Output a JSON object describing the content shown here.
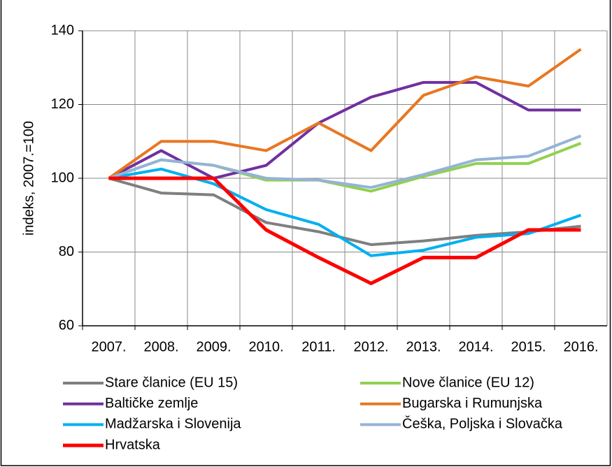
{
  "chart_data": {
    "type": "line",
    "y_label": "indeks, 2007.=100",
    "categories": [
      "2007.",
      "2008.",
      "2009.",
      "2010.",
      "2011.",
      "2012.",
      "2013.",
      "2014.",
      "2015.",
      "2016."
    ],
    "series": [
      {
        "name": "Stare članice (EU 15)",
        "color": "#7f7f7f",
        "values": [
          100,
          96,
          95.5,
          88,
          85.5,
          82,
          83,
          84.5,
          85.5,
          87
        ]
      },
      {
        "name": "Nove članice (EU 12)",
        "color": "#92d050",
        "values": [
          100,
          105,
          103.5,
          99.5,
          99.5,
          96.5,
          100.5,
          104,
          104,
          109.5
        ]
      },
      {
        "name": "Baltičke zemlje",
        "color": "#7030a0",
        "values": [
          100,
          107.5,
          100,
          103.5,
          115,
          122,
          126,
          126,
          118.5,
          118.5
        ]
      },
      {
        "name": "Bugarska i Rumunjska",
        "color": "#e87722",
        "values": [
          100,
          110,
          110,
          107.5,
          115,
          107.5,
          122.5,
          127.5,
          125,
          135
        ]
      },
      {
        "name": "Madžarska i Slovenija",
        "color": "#00b0f0",
        "values": [
          100,
          102.5,
          98.5,
          91.5,
          87.5,
          79,
          80.5,
          84,
          85,
          90
        ]
      },
      {
        "name": "Češka, Poljska i Slovačka",
        "color": "#95b3d7",
        "values": [
          100,
          105,
          103.5,
          100,
          99.5,
          97.5,
          101,
          105,
          106,
          111.5
        ]
      },
      {
        "name": "Hrvatska",
        "color": "#ff0000",
        "values": [
          100,
          100,
          100,
          86,
          78.5,
          71.5,
          78.5,
          78.5,
          86,
          86
        ]
      }
    ],
    "ylim": [
      60,
      140
    ],
    "yticks": [
      60,
      80,
      100,
      120,
      140
    ],
    "grid": true,
    "legend": "bottom"
  }
}
